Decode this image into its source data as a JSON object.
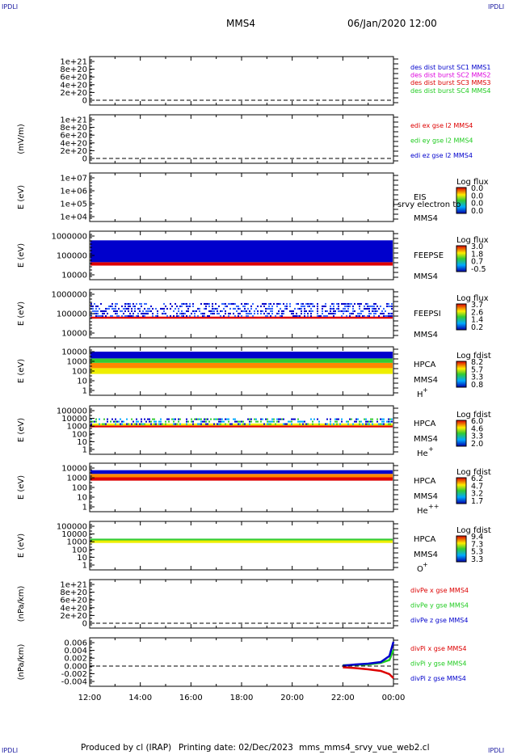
{
  "corners": {
    "tl": "IPDLI",
    "tr": "IPDLI",
    "bl": "IPDLI",
    "br": "IPDLI"
  },
  "header": {
    "spacecraft": "MMS4",
    "date": "06/Jan/2020 12:00"
  },
  "footer": {
    "produced": "Produced by cl (IRAP)",
    "printing": "Printing date: 02/Dec/2023",
    "script": "mms_mms4_srvy_vue_web2.cl"
  },
  "colors": {
    "red": "#dd0000",
    "green": "#22cc22",
    "blue": "#0000cc",
    "magenta": "#dd00dd"
  },
  "time_axis": {
    "ticks": [
      "12:00",
      "14:00",
      "16:00",
      "18:00",
      "20:00",
      "22:00",
      "00:00"
    ]
  },
  "panels": [
    {
      "id": "des-dist",
      "ylabel": "",
      "yticks": [
        "1e+21",
        "8e+20",
        "6e+20",
        "4e+20",
        "2e+20",
        "0"
      ],
      "legend": [
        {
          "text": "des dist burst SC1 MMS1",
          "color": "#0000cc"
        },
        {
          "text": "des dist burst SC2 MMS2",
          "color": "#dd00dd"
        },
        {
          "text": "des dist burst SC3 MMS3",
          "color": "#dd0000"
        },
        {
          "text": "des dist burst SC4 MMS4",
          "color": "#22cc22"
        }
      ]
    },
    {
      "id": "edi",
      "ylabel": "(mV/m)",
      "yticks": [
        "1e+21",
        "8e+20",
        "6e+20",
        "4e+20",
        "2e+20",
        "0"
      ],
      "legend": [
        {
          "text": "edi ex gse l2 MMS4",
          "color": "#dd0000"
        },
        {
          "text": "edi ey gse l2 MMS4",
          "color": "#22cc22"
        },
        {
          "text": "edi ez gse l2 MMS4",
          "color": "#0000cc"
        }
      ]
    },
    {
      "id": "eis",
      "ylabel": "E (eV)",
      "yticks": [
        "1e+07",
        "1e+06",
        "1e+05",
        "1e+04"
      ],
      "instrument": "EIS",
      "sc": "MMS4",
      "extra": "l srvy electron to",
      "colorbar": {
        "title": "Log flux",
        "ticks": [
          "0.0",
          "0.0",
          "0.0",
          "0.0"
        ]
      }
    },
    {
      "id": "feepse",
      "ylabel": "E (eV)",
      "yticks": [
        "1000000",
        "100000",
        "10000"
      ],
      "instrument": "FEEPSE",
      "sc": "MMS4",
      "colorbar": {
        "title": "Log flux",
        "ticks": [
          "3.0",
          "1.8",
          "0.7",
          "-0.5"
        ]
      }
    },
    {
      "id": "feepsi",
      "ylabel": "E (eV)",
      "yticks": [
        "1000000",
        "100000",
        "10000"
      ],
      "instrument": "FEEPSI",
      "sc": "MMS4",
      "colorbar": {
        "title": "Log flux",
        "ticks": [
          "3.7",
          "2.6",
          "1.4",
          "0.2"
        ]
      }
    },
    {
      "id": "hpca-h",
      "ylabel": "E (eV)",
      "yticks": [
        "10000",
        "1000",
        "100",
        "10",
        "1"
      ],
      "instrument": "HPCA",
      "sc": "MMS4",
      "species": "H",
      "charge": "+",
      "colorbar": {
        "title": "Log fdist",
        "ticks": [
          "8.2",
          "5.7",
          "3.3",
          "0.8"
        ]
      }
    },
    {
      "id": "hpca-he",
      "ylabel": "E (eV)",
      "yticks": [
        "100000",
        "10000",
        "1000",
        "100",
        "10",
        "1"
      ],
      "instrument": "HPCA",
      "sc": "MMS4",
      "species": "He",
      "charge": "+",
      "colorbar": {
        "title": "Log fdist",
        "ticks": [
          "6.0",
          "4.6",
          "3.3",
          "2.0"
        ]
      }
    },
    {
      "id": "hpca-hepp",
      "ylabel": "E (eV)",
      "yticks": [
        "10000",
        "1000",
        "100",
        "10",
        "1"
      ],
      "instrument": "HPCA",
      "sc": "MMS4",
      "species": "He",
      "charge": "++",
      "colorbar": {
        "title": "Log fdist",
        "ticks": [
          "6.2",
          "4.7",
          "3.2",
          "1.7"
        ]
      }
    },
    {
      "id": "hpca-o",
      "ylabel": "E (eV)",
      "yticks": [
        "100000",
        "10000",
        "1000",
        "100",
        "10",
        "1"
      ],
      "instrument": "HPCA",
      "sc": "MMS4",
      "species": "O",
      "charge": "+",
      "colorbar": {
        "title": "Log fdist",
        "ticks": [
          "9.4",
          "7.3",
          "5.3",
          "3.3"
        ]
      }
    },
    {
      "id": "divpe",
      "ylabel": "(nPa/km)",
      "yticks": [
        "1e+21",
        "8e+20",
        "6e+20",
        "4e+20",
        "2e+20",
        "0"
      ],
      "legend": [
        {
          "text": "divPe x gse MMS4",
          "color": "#dd0000"
        },
        {
          "text": "divPe y gse MMS4",
          "color": "#22cc22"
        },
        {
          "text": "divPe z gse MMS4",
          "color": "#0000cc"
        }
      ]
    },
    {
      "id": "divpi",
      "ylabel": "(nPa/km)",
      "yticks": [
        "0.006",
        "0.004",
        "0.002",
        "0.000",
        "-0.002",
        "-0.004"
      ],
      "legend": [
        {
          "text": "divPi x gse MMS4",
          "color": "#dd0000"
        },
        {
          "text": "divPi y gse MMS4",
          "color": "#22cc22"
        },
        {
          "text": "divPi z gse MMS4",
          "color": "#0000cc"
        }
      ]
    }
  ],
  "chart_data": [
    {
      "type": "line",
      "title": "",
      "series": [],
      "xlabel": "",
      "ylabel": "",
      "ylim": [
        0,
        1e+21
      ]
    },
    {
      "type": "line",
      "series": [],
      "ylabel": "(mV/m)",
      "ylim": [
        0,
        1e+21
      ]
    },
    {
      "type": "heatmap",
      "ylabel": "E (eV)",
      "ylim": [
        10000,
        10000000
      ],
      "yscale": "log"
    },
    {
      "type": "heatmap",
      "ylabel": "E (eV)",
      "ylim": [
        10000,
        1000000
      ],
      "yscale": "log",
      "bands": [
        {
          "from": 30000,
          "to": 45000,
          "level": "red"
        },
        {
          "from": 45000,
          "to": 600000,
          "level": "blue"
        }
      ]
    },
    {
      "type": "heatmap",
      "ylabel": "E (eV)",
      "ylim": [
        10000,
        1000000
      ],
      "yscale": "log",
      "bands": [
        {
          "from": 55000,
          "to": 70000,
          "level": "red"
        },
        {
          "from": 70000,
          "to": 350000,
          "level": "blue-sparse"
        }
      ]
    },
    {
      "type": "heatmap",
      "ylabel": "E (eV)",
      "ylim": [
        1,
        10000
      ],
      "yscale": "log",
      "bands": [
        {
          "from": 50,
          "to": 200,
          "level": "yellow"
        },
        {
          "from": 200,
          "to": 700,
          "level": "orange"
        },
        {
          "from": 700,
          "to": 2000,
          "level": "green"
        },
        {
          "from": 2000,
          "to": 10000,
          "level": "blue"
        }
      ]
    },
    {
      "type": "heatmap",
      "ylabel": "E (eV)",
      "ylim": [
        1,
        100000
      ],
      "yscale": "log",
      "bands": [
        {
          "from": 700,
          "to": 1200,
          "level": "red"
        },
        {
          "from": 1200,
          "to": 2200,
          "level": "yellow"
        },
        {
          "from": 2200,
          "to": 10000,
          "level": "green-blue-sparse"
        }
      ]
    },
    {
      "type": "heatmap",
      "ylabel": "E (eV)",
      "ylim": [
        1,
        10000
      ],
      "yscale": "log",
      "bands": [
        {
          "from": 500,
          "to": 1100,
          "level": "red"
        },
        {
          "from": 1100,
          "to": 2500,
          "level": "orange"
        },
        {
          "from": 2500,
          "to": 6000,
          "level": "blue"
        }
      ]
    },
    {
      "type": "heatmap",
      "ylabel": "E (eV)",
      "ylim": [
        1,
        100000
      ],
      "yscale": "log",
      "bands": [
        {
          "from": 700,
          "to": 1500,
          "level": "yellow"
        },
        {
          "from": 1500,
          "to": 2500,
          "level": "green"
        }
      ]
    },
    {
      "type": "line",
      "series": [],
      "ylabel": "(nPa/km)",
      "ylim": [
        0,
        1e+21
      ]
    },
    {
      "type": "line",
      "ylabel": "(nPa/km)",
      "ylim": [
        -0.005,
        0.007
      ],
      "x": [
        "22:00",
        "22:30",
        "23:00",
        "23:30",
        "23:50",
        "00:00"
      ],
      "series": [
        {
          "name": "divPi x gse MMS4",
          "values": [
            -0.0003,
            -0.0005,
            -0.0008,
            -0.0012,
            -0.002,
            -0.003
          ]
        },
        {
          "name": "divPi y gse MMS4",
          "values": [
            0.0002,
            0.0003,
            0.0004,
            0.0008,
            0.0015,
            0.004
          ]
        },
        {
          "name": "divPi z gse MMS4",
          "values": [
            0.0001,
            0.0004,
            0.0006,
            0.001,
            0.0025,
            0.006
          ]
        }
      ]
    }
  ]
}
